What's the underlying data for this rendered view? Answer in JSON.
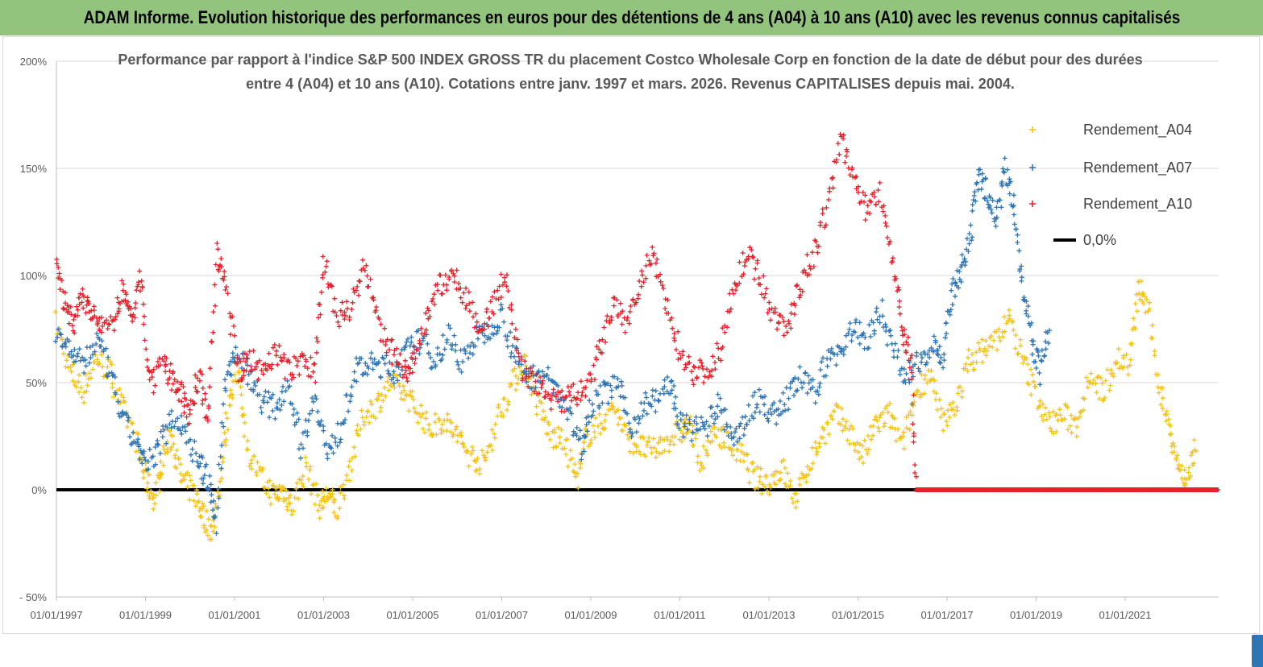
{
  "banner": {
    "title": "ADAM Informe. Evolution historique des performances en euros pour des détentions de 4 ans (A04) à 10 ans (A10) avec les revenus connus capitalisés"
  },
  "colors": {
    "banner_bg": "#93c47d",
    "A04": "#f5c317",
    "A07": "#2e75b6",
    "A10": "#e8202a",
    "zero_line": "#000000",
    "grid": "#d9d9d9"
  },
  "chart_data": {
    "type": "scatter",
    "title_line1": "Performance par rapport à l'indice S&P 500 INDEX GROSS TR  du placement Costco Wholesale Corp en fonction de la date de début pour des durées",
    "title_line2": "entre 4 (A04) et 10 ans (A10).  Cotations entre janv. 1997 et mars. 2026. Revenus CAPITALISES depuis mai. 2004.",
    "y_ticks": [
      "200%",
      "150%",
      "100%",
      "50%",
      "0%",
      "- 50%"
    ],
    "x_ticks": [
      "01/01/1997",
      "01/01/1999",
      "01/01/2001",
      "01/01/2003",
      "01/01/2005",
      "01/01/2007",
      "01/01/2009",
      "01/01/2011",
      "01/01/2013",
      "01/01/2015",
      "01/01/2017",
      "01/01/2019",
      "01/01/2021"
    ],
    "ylim": [
      -50,
      200
    ],
    "xlim": [
      1997.0,
      2023.1
    ],
    "grid": "horizontal",
    "legend_position": "right",
    "series": [
      {
        "name": "Rendement_A04",
        "marker": "+",
        "points": [
          [
            1997.0,
            78
          ],
          [
            1997.3,
            55
          ],
          [
            1997.6,
            46
          ],
          [
            1997.9,
            62
          ],
          [
            1998.2,
            55
          ],
          [
            1998.5,
            38
          ],
          [
            1998.8,
            22
          ],
          [
            1999.0,
            5
          ],
          [
            1999.2,
            -5
          ],
          [
            1999.4,
            15
          ],
          [
            1999.6,
            25
          ],
          [
            1999.8,
            5
          ],
          [
            2000.1,
            -2
          ],
          [
            2000.3,
            -12
          ],
          [
            2000.5,
            -20
          ],
          [
            2000.7,
            10
          ],
          [
            2000.9,
            45
          ],
          [
            2001.1,
            55
          ],
          [
            2001.3,
            18
          ],
          [
            2001.6,
            5
          ],
          [
            2001.9,
            -3
          ],
          [
            2002.1,
            0
          ],
          [
            2002.3,
            -8
          ],
          [
            2002.6,
            12
          ],
          [
            2002.9,
            -8
          ],
          [
            2003.1,
            -2
          ],
          [
            2003.3,
            -10
          ],
          [
            2003.6,
            12
          ],
          [
            2003.9,
            35
          ],
          [
            2004.2,
            40
          ],
          [
            2004.5,
            50
          ],
          [
            2004.8,
            45
          ],
          [
            2005.1,
            38
          ],
          [
            2005.4,
            28
          ],
          [
            2005.7,
            33
          ],
          [
            2006.0,
            25
          ],
          [
            2006.3,
            16
          ],
          [
            2006.6,
            12
          ],
          [
            2006.9,
            33
          ],
          [
            2007.2,
            48
          ],
          [
            2007.5,
            60
          ],
          [
            2007.8,
            40
          ],
          [
            2008.1,
            25
          ],
          [
            2008.4,
            22
          ],
          [
            2008.7,
            5
          ],
          [
            2008.9,
            25
          ],
          [
            2009.2,
            30
          ],
          [
            2009.5,
            40
          ],
          [
            2009.8,
            25
          ],
          [
            2010.1,
            20
          ],
          [
            2010.4,
            18
          ],
          [
            2010.7,
            23
          ],
          [
            2011.0,
            27
          ],
          [
            2011.2,
            30
          ],
          [
            2011.5,
            12
          ],
          [
            2011.8,
            28
          ],
          [
            2012.1,
            22
          ],
          [
            2012.4,
            15
          ],
          [
            2012.7,
            5
          ],
          [
            2013.0,
            3
          ],
          [
            2013.3,
            10
          ],
          [
            2013.6,
            -5
          ],
          [
            2013.9,
            12
          ],
          [
            2014.2,
            25
          ],
          [
            2014.5,
            35
          ],
          [
            2014.8,
            28
          ],
          [
            2015.1,
            15
          ],
          [
            2015.4,
            30
          ],
          [
            2015.7,
            35
          ],
          [
            2016.0,
            20
          ],
          [
            2016.3,
            45
          ],
          [
            2016.6,
            55
          ],
          [
            2016.9,
            30
          ],
          [
            2017.2,
            40
          ],
          [
            2017.5,
            60
          ],
          [
            2017.8,
            65
          ],
          [
            2018.1,
            70
          ],
          [
            2018.4,
            80
          ],
          [
            2018.7,
            60
          ],
          [
            2019.0,
            45
          ],
          [
            2019.3,
            30
          ],
          [
            2019.6,
            35
          ],
          [
            2019.9,
            30
          ],
          [
            2020.2,
            55
          ],
          [
            2020.5,
            45
          ],
          [
            2020.8,
            62
          ],
          [
            2021.1,
            58
          ],
          [
            2021.3,
            95
          ],
          [
            2021.5,
            85
          ],
          [
            2021.8,
            45
          ],
          [
            2022.0,
            30
          ],
          [
            2022.2,
            10
          ],
          [
            2022.4,
            4
          ],
          [
            2022.6,
            20
          ]
        ]
      },
      {
        "name": "Rendement_A07",
        "marker": "+",
        "points": [
          [
            1997.0,
            75
          ],
          [
            1997.3,
            65
          ],
          [
            1997.6,
            58
          ],
          [
            1997.9,
            70
          ],
          [
            1998.2,
            55
          ],
          [
            1998.5,
            32
          ],
          [
            1998.8,
            22
          ],
          [
            1999.0,
            10
          ],
          [
            1999.3,
            20
          ],
          [
            1999.6,
            35
          ],
          [
            1999.9,
            28
          ],
          [
            2000.2,
            12
          ],
          [
            2000.4,
            5
          ],
          [
            2000.6,
            -15
          ],
          [
            2000.8,
            50
          ],
          [
            2001.0,
            65
          ],
          [
            2001.3,
            55
          ],
          [
            2001.6,
            42
          ],
          [
            2001.9,
            38
          ],
          [
            2002.2,
            50
          ],
          [
            2002.5,
            20
          ],
          [
            2002.8,
            45
          ],
          [
            2003.1,
            15
          ],
          [
            2003.4,
            30
          ],
          [
            2003.7,
            55
          ],
          [
            2004.0,
            58
          ],
          [
            2004.3,
            58
          ],
          [
            2004.6,
            55
          ],
          [
            2004.9,
            65
          ],
          [
            2005.2,
            70
          ],
          [
            2005.5,
            60
          ],
          [
            2005.8,
            72
          ],
          [
            2006.1,
            60
          ],
          [
            2006.4,
            70
          ],
          [
            2006.7,
            75
          ],
          [
            2007.0,
            82
          ],
          [
            2007.3,
            62
          ],
          [
            2007.6,
            52
          ],
          [
            2007.9,
            55
          ],
          [
            2008.2,
            48
          ],
          [
            2008.5,
            35
          ],
          [
            2008.8,
            20
          ],
          [
            2009.0,
            40
          ],
          [
            2009.3,
            45
          ],
          [
            2009.6,
            50
          ],
          [
            2009.9,
            28
          ],
          [
            2010.2,
            40
          ],
          [
            2010.5,
            42
          ],
          [
            2010.8,
            50
          ],
          [
            2011.0,
            30
          ],
          [
            2011.3,
            28
          ],
          [
            2011.6,
            30
          ],
          [
            2011.9,
            40
          ],
          [
            2012.2,
            20
          ],
          [
            2012.5,
            35
          ],
          [
            2012.8,
            42
          ],
          [
            2013.1,
            35
          ],
          [
            2013.4,
            42
          ],
          [
            2013.7,
            52
          ],
          [
            2014.0,
            45
          ],
          [
            2014.3,
            60
          ],
          [
            2014.6,
            65
          ],
          [
            2014.9,
            75
          ],
          [
            2015.2,
            70
          ],
          [
            2015.5,
            85
          ],
          [
            2015.8,
            65
          ],
          [
            2016.1,
            52
          ],
          [
            2016.4,
            60
          ],
          [
            2016.7,
            70
          ],
          [
            2016.9,
            60
          ],
          [
            2017.1,
            90
          ],
          [
            2017.3,
            100
          ],
          [
            2017.5,
            115
          ],
          [
            2017.7,
            145
          ],
          [
            2017.9,
            140
          ],
          [
            2018.1,
            125
          ],
          [
            2018.3,
            150
          ],
          [
            2018.5,
            135
          ],
          [
            2018.7,
            95
          ],
          [
            2018.9,
            70
          ],
          [
            2019.1,
            55
          ],
          [
            2019.3,
            75
          ]
        ]
      },
      {
        "name": "Rendement_A10",
        "marker": "+",
        "points": [
          [
            1997.0,
            105
          ],
          [
            1997.2,
            85
          ],
          [
            1997.4,
            78
          ],
          [
            1997.6,
            90
          ],
          [
            1997.8,
            82
          ],
          [
            1998.0,
            75
          ],
          [
            1998.3,
            80
          ],
          [
            1998.5,
            95
          ],
          [
            1998.7,
            78
          ],
          [
            1998.9,
            100
          ],
          [
            1999.1,
            48
          ],
          [
            1999.4,
            58
          ],
          [
            1999.6,
            52
          ],
          [
            1999.8,
            45
          ],
          [
            2000.0,
            35
          ],
          [
            2000.2,
            55
          ],
          [
            2000.4,
            30
          ],
          [
            2000.6,
            110
          ],
          [
            2000.8,
            95
          ],
          [
            2001.1,
            55
          ],
          [
            2001.3,
            62
          ],
          [
            2001.6,
            55
          ],
          [
            2001.9,
            65
          ],
          [
            2002.2,
            55
          ],
          [
            2002.5,
            60
          ],
          [
            2002.8,
            55
          ],
          [
            2003.0,
            110
          ],
          [
            2003.3,
            80
          ],
          [
            2003.6,
            85
          ],
          [
            2003.9,
            105
          ],
          [
            2004.2,
            80
          ],
          [
            2004.5,
            65
          ],
          [
            2004.8,
            55
          ],
          [
            2005.0,
            60
          ],
          [
            2005.3,
            80
          ],
          [
            2005.6,
            95
          ],
          [
            2005.9,
            100
          ],
          [
            2006.2,
            90
          ],
          [
            2006.5,
            75
          ],
          [
            2006.8,
            85
          ],
          [
            2007.1,
            100
          ],
          [
            2007.4,
            58
          ],
          [
            2007.7,
            50
          ],
          [
            2008.0,
            45
          ],
          [
            2008.3,
            40
          ],
          [
            2008.6,
            45
          ],
          [
            2008.9,
            45
          ],
          [
            2009.2,
            65
          ],
          [
            2009.5,
            85
          ],
          [
            2009.8,
            78
          ],
          [
            2010.1,
            95
          ],
          [
            2010.4,
            110
          ],
          [
            2010.7,
            85
          ],
          [
            2011.0,
            65
          ],
          [
            2011.3,
            55
          ],
          [
            2011.6,
            55
          ],
          [
            2011.9,
            65
          ],
          [
            2012.2,
            95
          ],
          [
            2012.5,
            110
          ],
          [
            2012.8,
            100
          ],
          [
            2013.1,
            80
          ],
          [
            2013.4,
            75
          ],
          [
            2013.7,
            95
          ],
          [
            2014.0,
            110
          ],
          [
            2014.3,
            130
          ],
          [
            2014.6,
            165
          ],
          [
            2014.9,
            145
          ],
          [
            2015.2,
            130
          ],
          [
            2015.5,
            140
          ],
          [
            2015.8,
            105
          ],
          [
            2016.0,
            75
          ],
          [
            2016.2,
            60
          ],
          [
            2016.3,
            0
          ],
          [
            2017.0,
            0
          ],
          [
            2018.0,
            0
          ],
          [
            2019.0,
            0
          ],
          [
            2020.0,
            0
          ],
          [
            2021.0,
            0
          ],
          [
            2022.0,
            0
          ],
          [
            2023.1,
            0
          ]
        ]
      }
    ],
    "reference_line": {
      "name": "0,0%",
      "value": 0
    }
  }
}
